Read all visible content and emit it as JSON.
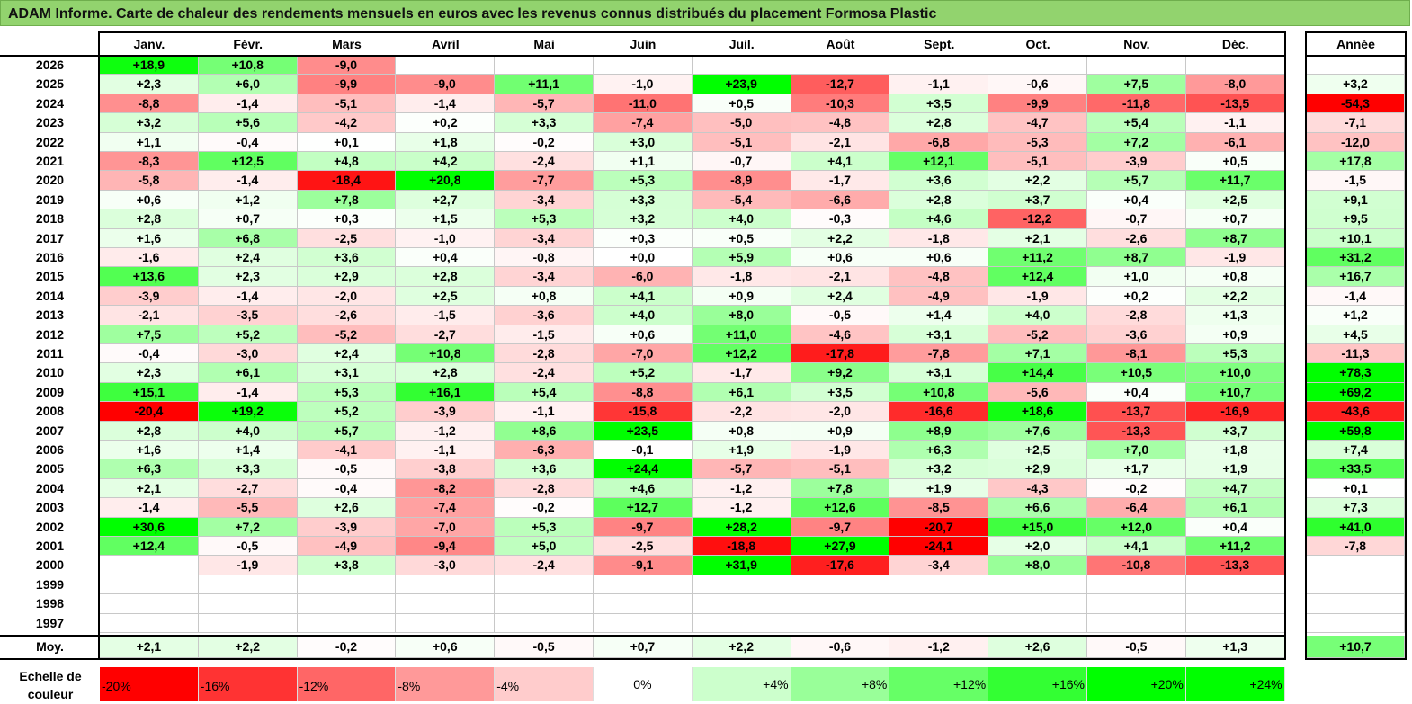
{
  "title": "ADAM Informe. Carte de chaleur des rendements mensuels en euros avec les revenus connus distribués du placement Formosa Plastic",
  "chart_data": {
    "type": "heatmap",
    "title": "ADAM Informe. Carte de chaleur des rendements mensuels en euros avec les revenus connus distribués du placement Formosa Plastic",
    "columns": [
      "Janv.",
      "Févr.",
      "Mars",
      "Avril",
      "Mai",
      "Juin",
      "Juil.",
      "Août",
      "Sept.",
      "Oct.",
      "Nov.",
      "Déc."
    ],
    "year_column_label": "Année",
    "average_label": "Moy.",
    "rows": [
      {
        "year": "2026",
        "values": [
          "+18,9",
          "+10,8",
          "-9,0",
          "",
          "",
          "",
          "",
          "",
          "",
          "",
          "",
          ""
        ],
        "annual": ""
      },
      {
        "year": "2025",
        "values": [
          "+2,3",
          "+6,0",
          "-9,9",
          "-9,0",
          "+11,1",
          "-1,0",
          "+23,9",
          "-12,7",
          "-1,1",
          "-0,6",
          "+7,5",
          "-8,0"
        ],
        "annual": "+3,2"
      },
      {
        "year": "2024",
        "values": [
          "-8,8",
          "-1,4",
          "-5,1",
          "-1,4",
          "-5,7",
          "-11,0",
          "+0,5",
          "-10,3",
          "+3,5",
          "-9,9",
          "-11,8",
          "-13,5"
        ],
        "annual": "-54,3"
      },
      {
        "year": "2023",
        "values": [
          "+3,2",
          "+5,6",
          "-4,2",
          "+0,2",
          "+3,3",
          "-7,4",
          "-5,0",
          "-4,8",
          "+2,8",
          "-4,7",
          "+5,4",
          "-1,1"
        ],
        "annual": "-7,1"
      },
      {
        "year": "2022",
        "values": [
          "+1,1",
          "-0,4",
          "+0,1",
          "+1,8",
          "-0,2",
          "+3,0",
          "-5,1",
          "-2,1",
          "-6,8",
          "-5,3",
          "+7,2",
          "-6,1"
        ],
        "annual": "-12,0"
      },
      {
        "year": "2021",
        "values": [
          "-8,3",
          "+12,5",
          "+4,8",
          "+4,2",
          "-2,4",
          "+1,1",
          "-0,7",
          "+4,1",
          "+12,1",
          "-5,1",
          "-3,9",
          "+0,5"
        ],
        "annual": "+17,8"
      },
      {
        "year": "2020",
        "values": [
          "-5,8",
          "-1,4",
          "-18,4",
          "+20,8",
          "-7,7",
          "+5,3",
          "-8,9",
          "-1,7",
          "+3,6",
          "+2,2",
          "+5,7",
          "+11,7"
        ],
        "annual": "-1,5"
      },
      {
        "year": "2019",
        "values": [
          "+0,6",
          "+1,2",
          "+7,8",
          "+2,7",
          "-3,4",
          "+3,3",
          "-5,4",
          "-6,6",
          "+2,8",
          "+3,7",
          "+0,4",
          "+2,5"
        ],
        "annual": "+9,1"
      },
      {
        "year": "2018",
        "values": [
          "+2,8",
          "+0,7",
          "+0,3",
          "+1,5",
          "+5,3",
          "+3,2",
          "+4,0",
          "-0,3",
          "+4,6",
          "-12,2",
          "-0,7",
          "+0,7"
        ],
        "annual": "+9,5"
      },
      {
        "year": "2017",
        "values": [
          "+1,6",
          "+6,8",
          "-2,5",
          "-1,0",
          "-3,4",
          "+0,3",
          "+0,5",
          "+2,2",
          "-1,8",
          "+2,1",
          "-2,6",
          "+8,7"
        ],
        "annual": "+10,1"
      },
      {
        "year": "2016",
        "values": [
          "-1,6",
          "+2,4",
          "+3,6",
          "+0,4",
          "-0,8",
          "+0,0",
          "+5,9",
          "+0,6",
          "+0,6",
          "+11,2",
          "+8,7",
          "-1,9"
        ],
        "annual": "+31,2"
      },
      {
        "year": "2015",
        "values": [
          "+13,6",
          "+2,3",
          "+2,9",
          "+2,8",
          "-3,4",
          "-6,0",
          "-1,8",
          "-2,1",
          "-4,8",
          "+12,4",
          "+1,0",
          "+0,8"
        ],
        "annual": "+16,7"
      },
      {
        "year": "2014",
        "values": [
          "-3,9",
          "-1,4",
          "-2,0",
          "+2,5",
          "+0,8",
          "+4,1",
          "+0,9",
          "+2,4",
          "-4,9",
          "-1,9",
          "+0,2",
          "+2,2"
        ],
        "annual": "-1,4"
      },
      {
        "year": "2013",
        "values": [
          "-2,1",
          "-3,5",
          "-2,6",
          "-1,5",
          "-3,6",
          "+4,0",
          "+8,0",
          "-0,5",
          "+1,4",
          "+4,0",
          "-2,8",
          "+1,3"
        ],
        "annual": "+1,2"
      },
      {
        "year": "2012",
        "values": [
          "+7,5",
          "+5,2",
          "-5,2",
          "-2,7",
          "-1,5",
          "+0,6",
          "+11,0",
          "-4,6",
          "+3,1",
          "-5,2",
          "-3,6",
          "+0,9"
        ],
        "annual": "+4,5"
      },
      {
        "year": "2011",
        "values": [
          "-0,4",
          "-3,0",
          "+2,4",
          "+10,8",
          "-2,8",
          "-7,0",
          "+12,2",
          "-17,8",
          "-7,8",
          "+7,1",
          "-8,1",
          "+5,3"
        ],
        "annual": "-11,3"
      },
      {
        "year": "2010",
        "values": [
          "+2,3",
          "+6,1",
          "+3,1",
          "+2,8",
          "-2,4",
          "+5,2",
          "-1,7",
          "+9,2",
          "+3,1",
          "+14,4",
          "+10,5",
          "+10,0"
        ],
        "annual": "+78,3"
      },
      {
        "year": "2009",
        "values": [
          "+15,1",
          "-1,4",
          "+5,3",
          "+16,1",
          "+5,4",
          "-8,8",
          "+6,1",
          "+3,5",
          "+10,8",
          "-5,6",
          "+0,4",
          "+10,7"
        ],
        "annual": "+69,2"
      },
      {
        "year": "2008",
        "values": [
          "-20,4",
          "+19,2",
          "+5,2",
          "-3,9",
          "-1,1",
          "-15,8",
          "-2,2",
          "-2,0",
          "-16,6",
          "+18,6",
          "-13,7",
          "-16,9"
        ],
        "annual": "-43,6"
      },
      {
        "year": "2007",
        "values": [
          "+2,8",
          "+4,0",
          "+5,7",
          "-1,2",
          "+8,6",
          "+23,5",
          "+0,8",
          "+0,9",
          "+8,9",
          "+7,6",
          "-13,3",
          "+3,7"
        ],
        "annual": "+59,8"
      },
      {
        "year": "2006",
        "values": [
          "+1,6",
          "+1,4",
          "-4,1",
          "-1,1",
          "-6,3",
          "-0,1",
          "+1,9",
          "-1,9",
          "+6,3",
          "+2,5",
          "+7,0",
          "+1,8"
        ],
        "annual": "+7,4"
      },
      {
        "year": "2005",
        "values": [
          "+6,3",
          "+3,3",
          "-0,5",
          "-3,8",
          "+3,6",
          "+24,4",
          "-5,7",
          "-5,1",
          "+3,2",
          "+2,9",
          "+1,7",
          "+1,9"
        ],
        "annual": "+33,5"
      },
      {
        "year": "2004",
        "values": [
          "+2,1",
          "-2,7",
          "-0,4",
          "-8,2",
          "-2,8",
          "+4,6",
          "-1,2",
          "+7,8",
          "+1,9",
          "-4,3",
          "-0,2",
          "+4,7"
        ],
        "annual": "+0,1"
      },
      {
        "year": "2003",
        "values": [
          "-1,4",
          "-5,5",
          "+2,6",
          "-7,4",
          "-0,2",
          "+12,7",
          "-1,2",
          "+12,6",
          "-8,5",
          "+6,6",
          "-6,4",
          "+6,1"
        ],
        "annual": "+7,3"
      },
      {
        "year": "2002",
        "values": [
          "+30,6",
          "+7,2",
          "-3,9",
          "-7,0",
          "+5,3",
          "-9,7",
          "+28,2",
          "-9,7",
          "-20,7",
          "+15,0",
          "+12,0",
          "+0,4"
        ],
        "annual": "+41,0"
      },
      {
        "year": "2001",
        "values": [
          "+12,4",
          "-0,5",
          "-4,9",
          "-9,4",
          "+5,0",
          "-2,5",
          "-18,8",
          "+27,9",
          "-24,1",
          "+2,0",
          "+4,1",
          "+11,2"
        ],
        "annual": "-7,8"
      },
      {
        "year": "2000",
        "values": [
          "",
          "-1,9",
          "+3,8",
          "-3,0",
          "-2,4",
          "-9,1",
          "+31,9",
          "-17,6",
          "-3,4",
          "+8,0",
          "-10,8",
          "-13,3"
        ],
        "annual": ""
      },
      {
        "year": "1999",
        "values": [
          "",
          "",
          "",
          "",
          "",
          "",
          "",
          "",
          "",
          "",
          "",
          ""
        ],
        "annual": ""
      },
      {
        "year": "1998",
        "values": [
          "",
          "",
          "",
          "",
          "",
          "",
          "",
          "",
          "",
          "",
          "",
          ""
        ],
        "annual": ""
      },
      {
        "year": "1997",
        "values": [
          "",
          "",
          "",
          "",
          "",
          "",
          "",
          "",
          "",
          "",
          "",
          ""
        ],
        "annual": ""
      }
    ],
    "averages": [
      "+2,1",
      "+2,2",
      "-0,2",
      "+0,6",
      "-0,5",
      "+0,7",
      "+2,2",
      "-0,6",
      "-1,2",
      "+2,6",
      "-0,5",
      "+1,3"
    ],
    "average_annual": "+10,7",
    "color_scale": {
      "label": "Echelle de couleur",
      "stops": [
        "-20%",
        "-16%",
        "-12%",
        "-8%",
        "-4%",
        "0%",
        "+4%",
        "+8%",
        "+12%",
        "+16%",
        "+20%",
        "+24%"
      ],
      "negative_color": "#ff0000",
      "neutral_color": "#ffffff",
      "positive_color": "#00ff00"
    }
  }
}
